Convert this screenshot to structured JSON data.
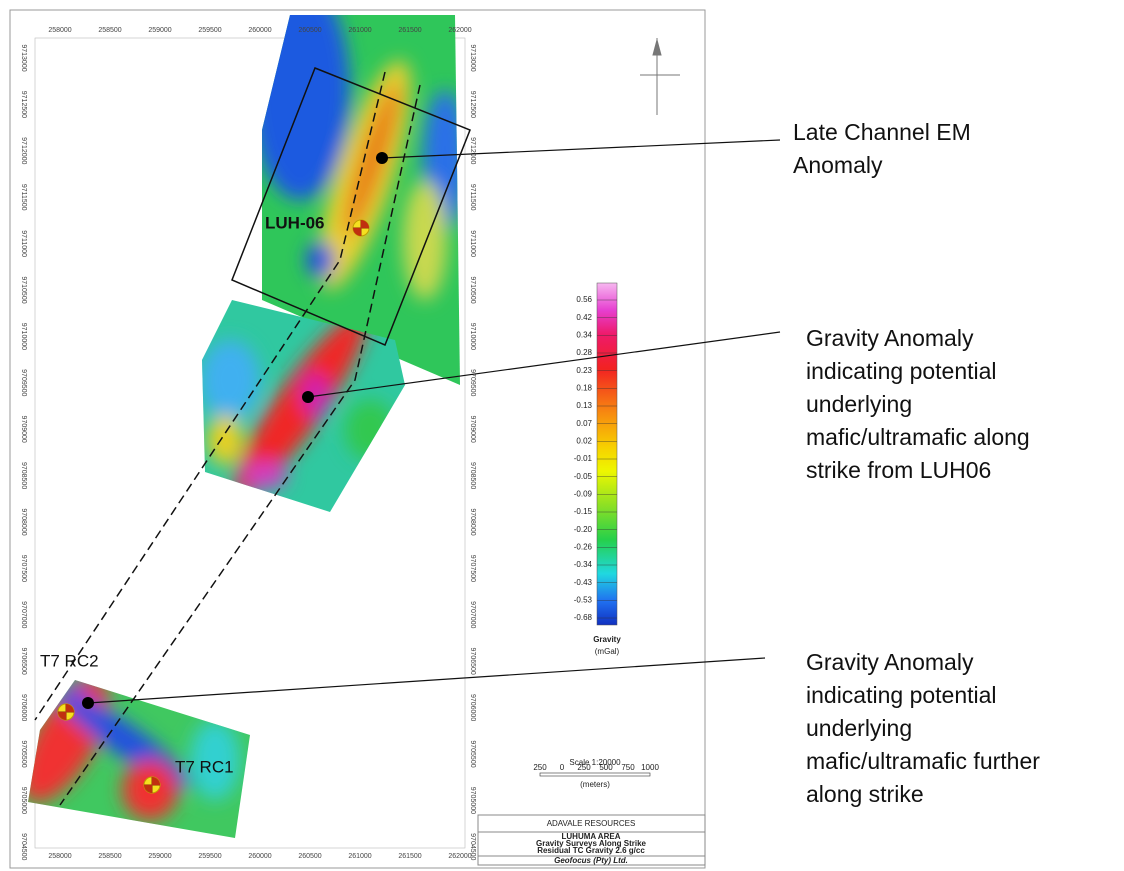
{
  "map": {
    "x_labels": [
      "258000",
      "258500",
      "259000",
      "259500",
      "260000",
      "260500",
      "261000",
      "261500",
      "262000"
    ],
    "y_labels": [
      "9713000",
      "9712500",
      "9712000",
      "9711500",
      "9711000",
      "9710500",
      "9710000",
      "9709500",
      "9709000",
      "9708500",
      "9708000",
      "9707500",
      "9707000",
      "9706500",
      "9706000",
      "9705500",
      "9705000",
      "9704500"
    ],
    "sites": [
      "LUH-06",
      "T7 RC2",
      "T7 RC1"
    ]
  },
  "legend": {
    "values": [
      "0.56",
      "0.42",
      "0.34",
      "0.28",
      "0.23",
      "0.18",
      "0.13",
      "0.07",
      "0.02",
      "-0.01",
      "-0.05",
      "-0.09",
      "-0.15",
      "-0.20",
      "-0.26",
      "-0.34",
      "-0.43",
      "-0.53",
      "-0.68"
    ],
    "title": "Gravity",
    "unit": "(mGal)"
  },
  "scale": {
    "title": "Scale 1:20000",
    "ticks": [
      "250",
      "0",
      "250",
      "500",
      "750",
      "1000"
    ],
    "unit": "(meters)"
  },
  "title_block": {
    "company": "ADAVALE RESOURCES",
    "lines": [
      "LUHUMA AREA",
      "Gravity Surveys Along Strike",
      "Residual TC Gravity 2.6 g/cc"
    ],
    "footer": "Geofocus (Pty) Ltd."
  },
  "annotations": [
    {
      "lines": [
        "Late Channel EM",
        "Anomaly"
      ]
    },
    {
      "lines": [
        "Gravity Anomaly",
        "indicating potential",
        "underlying",
        "mafic/ultramafic along",
        "strike from LUH06"
      ]
    },
    {
      "lines": [
        "Gravity Anomaly",
        "indicating potential",
        "underlying",
        "mafic/ultramafic further",
        "along strike"
      ]
    }
  ]
}
